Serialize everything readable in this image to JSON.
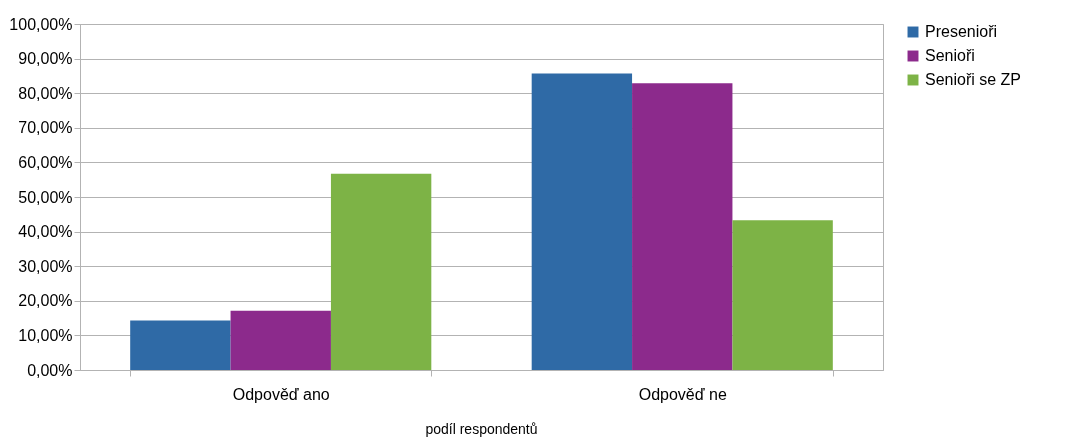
{
  "chart_data": {
    "type": "bar",
    "xlabel": "podíl respondentů",
    "categories": [
      "Odpověď ano",
      "Odpověď ne"
    ],
    "series": [
      {
        "name": "Presenioři",
        "color": "#2f6aa6",
        "values": [
          14.3,
          85.7
        ]
      },
      {
        "name": "Senioři",
        "color": "#8c2a8c",
        "values": [
          17.1,
          82.9
        ]
      },
      {
        "name": "Senioři se ZP",
        "color": "#7db346",
        "values": [
          56.7,
          43.3
        ]
      }
    ],
    "ylim": [
      0,
      100
    ],
    "yticks": [
      {
        "value": 0,
        "label": "0,00%"
      },
      {
        "value": 10,
        "label": "10,00%"
      },
      {
        "value": 20,
        "label": "20,00%"
      },
      {
        "value": 30,
        "label": "30,00%"
      },
      {
        "value": 40,
        "label": "40,00%"
      },
      {
        "value": 50,
        "label": "50,00%"
      },
      {
        "value": 60,
        "label": "60,00%"
      },
      {
        "value": 70,
        "label": "70,00%"
      },
      {
        "value": 80,
        "label": "80,00%"
      },
      {
        "value": 90,
        "label": "90,00%"
      },
      {
        "value": 100,
        "label": "100,00%"
      }
    ],
    "grid": "y",
    "legend": "right"
  }
}
